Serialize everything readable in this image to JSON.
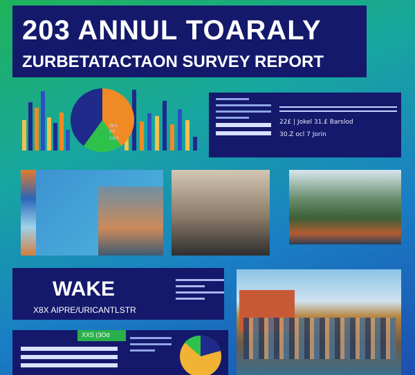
{
  "title": {
    "main": "203 ANNUL TOARALY",
    "subtitle": "ZURBETATACTAON SURVEY REPORT"
  },
  "chart_data": {
    "type": "bar",
    "bars_colors": [
      "#f2c14e",
      "#1f2a8a",
      "#f08a24",
      "#2c4fc2"
    ],
    "pie_colors": [
      "#f08a24",
      "#2ec24d",
      "#1f2a8a"
    ],
    "pie_labels": [
      "38:4",
      "3:0",
      "2:8.3"
    ]
  },
  "stats": {
    "row1": "22£ | Jokel    31.£ Barslod",
    "row2": "30.Z ocl 7 Jorin"
  },
  "lower": {
    "title": "WAKE",
    "subtitle": "X8X AIPRE/URICANTLSTR"
  },
  "bottom": {
    "button": "XXS (3Od"
  },
  "colors": {
    "panel": "#14196b",
    "accent_green": "#29b04a",
    "accent_orange": "#f08a24"
  }
}
